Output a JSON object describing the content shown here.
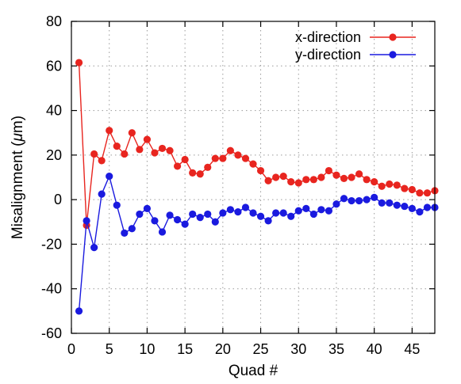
{
  "chart_data": {
    "type": "line",
    "xlabel": "Quad #",
    "ylabel_prefix": "Misalignment (",
    "ylabel_unit_symbol": "μ",
    "ylabel_suffix": "m)",
    "xlim": [
      0,
      48
    ],
    "ylim": [
      -60,
      80
    ],
    "xticks": [
      0,
      5,
      10,
      15,
      20,
      25,
      30,
      35,
      40,
      45
    ],
    "yticks": [
      -60,
      -40,
      -20,
      0,
      20,
      40,
      60,
      80
    ],
    "grid": true,
    "legend_position": "top-right",
    "x": [
      1,
      2,
      3,
      4,
      5,
      6,
      7,
      8,
      9,
      10,
      11,
      12,
      13,
      14,
      15,
      16,
      17,
      18,
      19,
      20,
      21,
      22,
      23,
      24,
      25,
      26,
      27,
      28,
      29,
      30,
      31,
      32,
      33,
      34,
      35,
      36,
      37,
      38,
      39,
      40,
      41,
      42,
      43,
      44,
      45,
      46,
      47,
      48
    ],
    "series": [
      {
        "name": "x-direction",
        "color": "#e8251f",
        "values": [
          61.5,
          -11.5,
          20.5,
          17.5,
          31,
          24,
          20.5,
          30,
          22.5,
          27,
          21,
          23,
          22,
          15,
          18,
          12,
          11.5,
          14.5,
          18.5,
          18.5,
          22,
          20,
          18.5,
          16,
          13,
          8.5,
          10,
          10.5,
          8,
          7.5,
          9,
          9,
          10,
          13,
          11,
          9.5,
          10,
          11.5,
          9,
          8,
          6,
          7,
          6.5,
          5,
          4.5,
          3,
          3,
          4
        ]
      },
      {
        "name": "y-direction",
        "color": "#1a1adf",
        "values": [
          -50,
          -9.5,
          -21.5,
          2.5,
          10.5,
          -2.5,
          -15,
          -13,
          -6.5,
          -4,
          -9.5,
          -14.5,
          -7,
          -9,
          -11,
          -6.5,
          -8,
          -6.5,
          -10,
          -6,
          -4.5,
          -5.5,
          -3.5,
          -6,
          -7.5,
          -9.5,
          -6,
          -6,
          -7.5,
          -5,
          -4,
          -6.5,
          -4.5,
          -5,
          -2,
          0.5,
          -0.5,
          -0.5,
          0,
          1,
          -1.5,
          -1.5,
          -2.5,
          -3,
          -4,
          -5.5,
          -3.5,
          -3.5
        ]
      }
    ]
  }
}
